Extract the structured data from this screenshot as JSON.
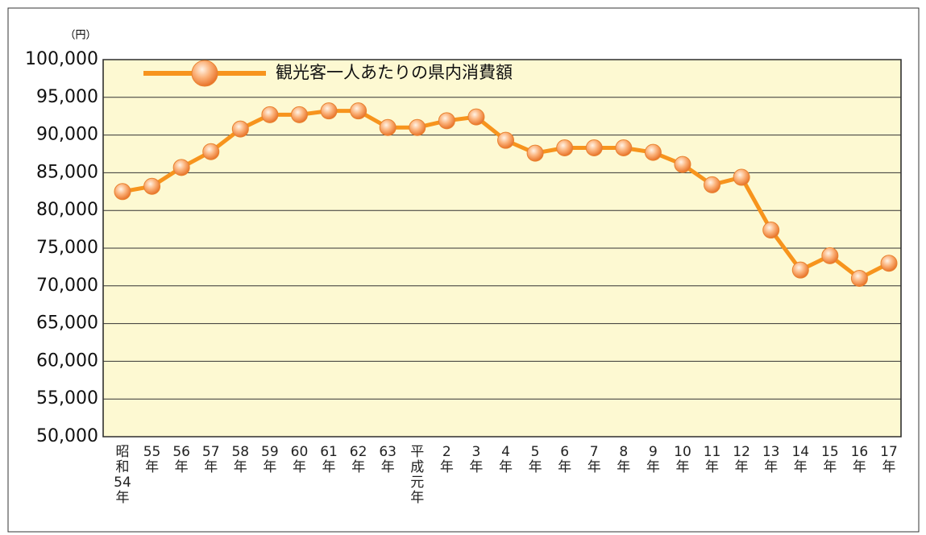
{
  "chart_data": {
    "type": "line",
    "unit_label": "（円）",
    "categories": [
      "昭和54年",
      "55年",
      "56年",
      "57年",
      "58年",
      "59年",
      "60年",
      "61年",
      "62年",
      "63年",
      "平成元年",
      "2年",
      "3年",
      "4年",
      "5年",
      "6年",
      "7年",
      "8年",
      "9年",
      "10年",
      "11年",
      "12年",
      "13年",
      "14年",
      "15年",
      "16年",
      "17年"
    ],
    "series": [
      {
        "name": "観光客一人あたりの県内消費額",
        "color": "#f7941d",
        "values": [
          82500,
          83200,
          85700,
          87800,
          90800,
          92700,
          92700,
          93200,
          93200,
          91000,
          91000,
          91900,
          92400,
          89300,
          87600,
          88300,
          88300,
          88300,
          87700,
          86100,
          83400,
          84400,
          77400,
          72100,
          74000,
          71000,
          73000
        ]
      }
    ],
    "ylim": [
      50000,
      100000
    ],
    "yticks": [
      {
        "value": 50000,
        "label": "50,000"
      },
      {
        "value": 55000,
        "label": "55,000"
      },
      {
        "value": 60000,
        "label": "60,000"
      },
      {
        "value": 65000,
        "label": "65,000"
      },
      {
        "value": 70000,
        "label": "70,000"
      },
      {
        "value": 75000,
        "label": "75,000"
      },
      {
        "value": 80000,
        "label": "80,000"
      },
      {
        "value": 85000,
        "label": "85,000"
      },
      {
        "value": 90000,
        "label": "90,000"
      },
      {
        "value": 95000,
        "label": "95,000"
      },
      {
        "value": 100000,
        "label": "100,000"
      }
    ],
    "grid": true,
    "legend": "upper left"
  }
}
